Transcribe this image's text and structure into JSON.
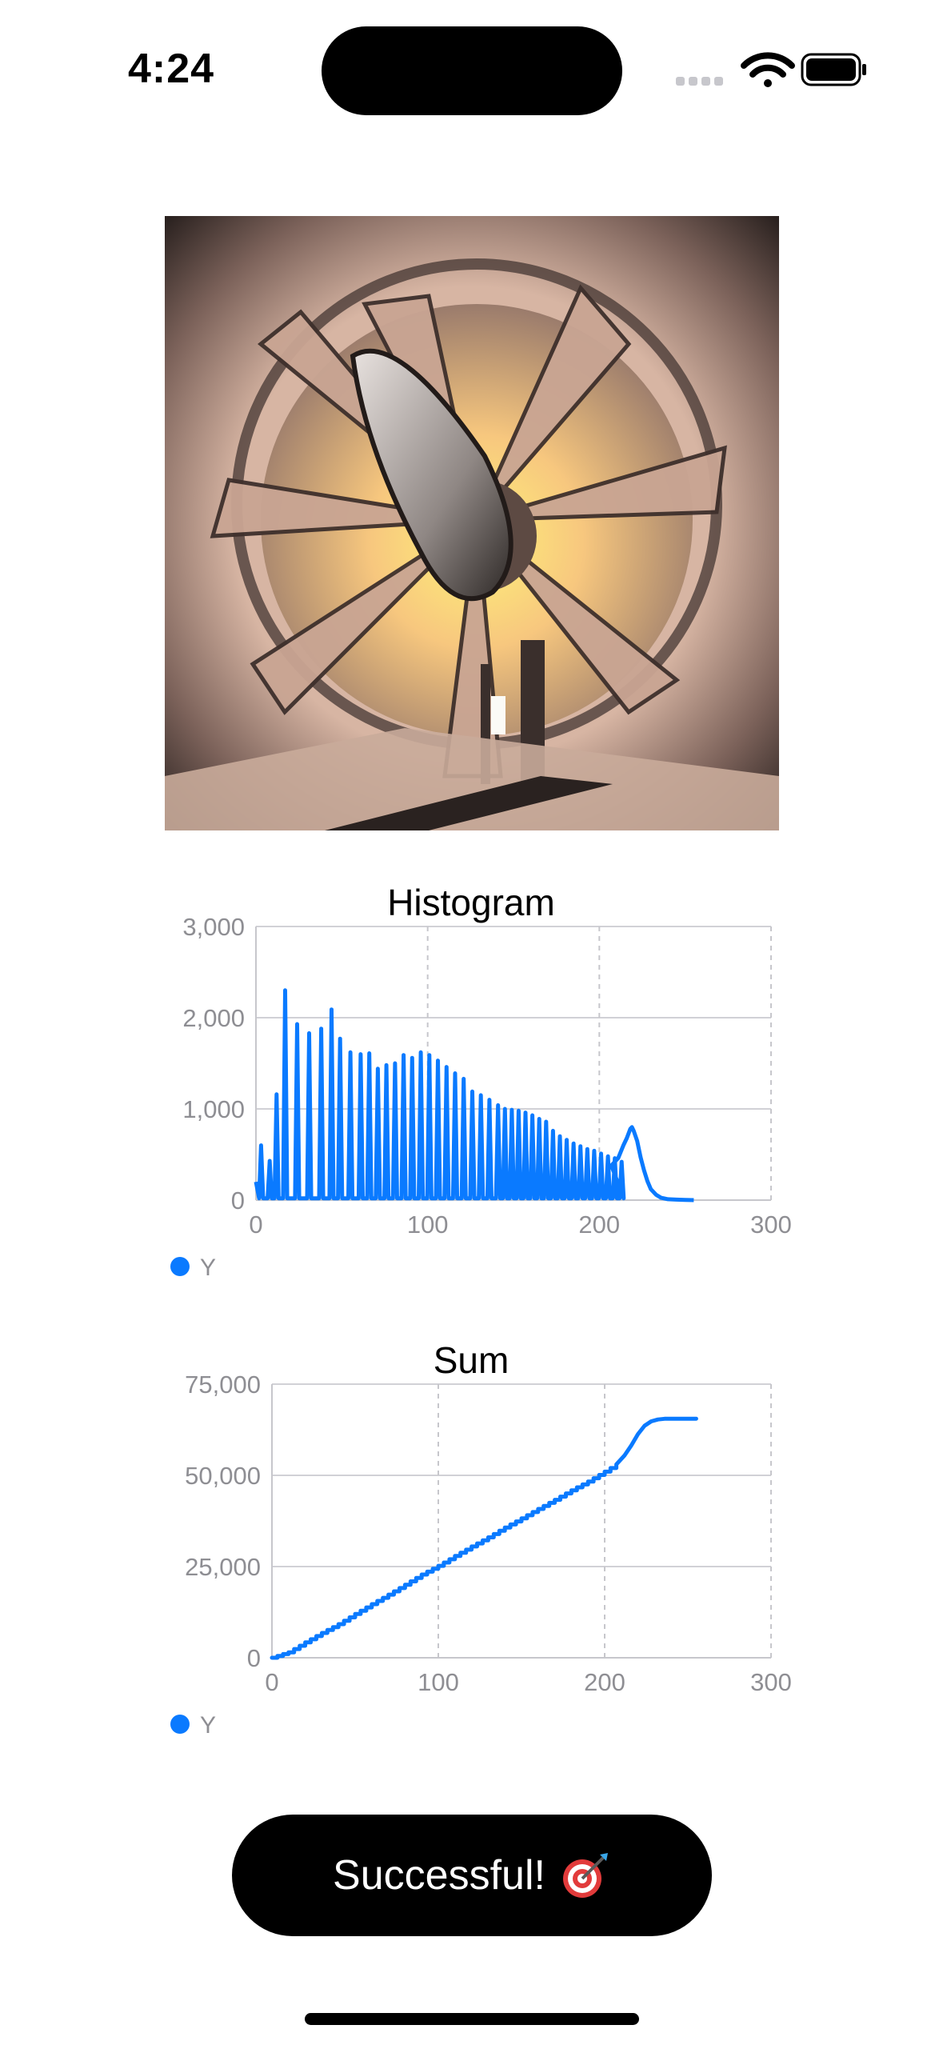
{
  "status_bar": {
    "time": "4:24"
  },
  "icons": {
    "signal": "cellular-signal-icon",
    "wifi": "wifi-icon",
    "battery": "battery-icon",
    "target": "bullseye-dart-icon"
  },
  "colors": {
    "series": "#0a7aff",
    "button_bg": "#000000",
    "grid": "#d1d1d6",
    "tick": "#8e8e93"
  },
  "chart_data": [
    {
      "type": "line",
      "title": "Histogram",
      "xlim": [
        0,
        300
      ],
      "ylim": [
        0,
        3000
      ],
      "xticks": [
        "0",
        "100",
        "200",
        "300"
      ],
      "yticks": [
        "0",
        "1,000",
        "2,000",
        "3,000"
      ],
      "legend": {
        "placement": "bottom-left"
      },
      "spike_x": [
        3,
        8,
        12,
        17,
        24,
        31,
        38,
        44,
        49,
        55,
        61,
        66,
        71,
        76,
        81,
        86,
        91,
        96,
        101,
        106,
        111,
        116,
        121,
        126,
        131,
        136,
        141,
        145,
        149,
        153,
        157,
        161,
        165,
        169,
        173,
        177,
        181,
        185,
        189,
        193,
        197,
        201,
        205,
        209,
        213
      ],
      "spike_y": [
        600,
        430,
        1160,
        2300,
        1930,
        1830,
        1880,
        2090,
        1770,
        1620,
        1600,
        1610,
        1440,
        1480,
        1500,
        1590,
        1560,
        1620,
        1590,
        1530,
        1460,
        1390,
        1330,
        1190,
        1150,
        1100,
        1040,
        1000,
        990,
        980,
        960,
        930,
        890,
        860,
        760,
        700,
        660,
        620,
        590,
        560,
        540,
        510,
        480,
        460,
        420
      ],
      "base_y": 20,
      "tail": {
        "x": [
          207,
          211,
          214,
          216,
          218,
          219,
          220,
          222,
          224,
          226,
          228,
          230,
          233,
          236,
          240,
          245,
          250,
          255
        ],
        "y": [
          380,
          460,
          600,
          680,
          780,
          800,
          760,
          650,
          470,
          330,
          210,
          120,
          60,
          25,
          10,
          5,
          2,
          0
        ]
      },
      "series": [
        {
          "name": "Y",
          "color": "#0a7aff"
        }
      ]
    },
    {
      "type": "line",
      "title": "Sum",
      "xlim": [
        0,
        300
      ],
      "ylim": [
        0,
        75000
      ],
      "xticks": [
        "0",
        "100",
        "200",
        "300"
      ],
      "yticks": [
        "0",
        "25,000",
        "50,000",
        "75,000"
      ],
      "legend": {
        "placement": "bottom-left"
      },
      "x": [
        0,
        10,
        20,
        30,
        40,
        50,
        60,
        70,
        80,
        90,
        100,
        110,
        120,
        130,
        140,
        150,
        160,
        170,
        180,
        190,
        200,
        207,
        212,
        216,
        220,
        224,
        228,
        232,
        236,
        240,
        245,
        250,
        255
      ],
      "y": [
        0,
        1500,
        4200,
        6800,
        9200,
        12000,
        14700,
        17300,
        20000,
        22800,
        25200,
        27900,
        30500,
        33000,
        35700,
        38200,
        40800,
        43300,
        45900,
        48300,
        51000,
        53000,
        55500,
        58200,
        61300,
        63600,
        64800,
        65300,
        65500,
        65530,
        65536,
        65536,
        65536
      ],
      "step_every": 3,
      "series": [
        {
          "name": "Y",
          "color": "#0a7aff"
        }
      ]
    }
  ],
  "button": {
    "label": "Successful!"
  }
}
